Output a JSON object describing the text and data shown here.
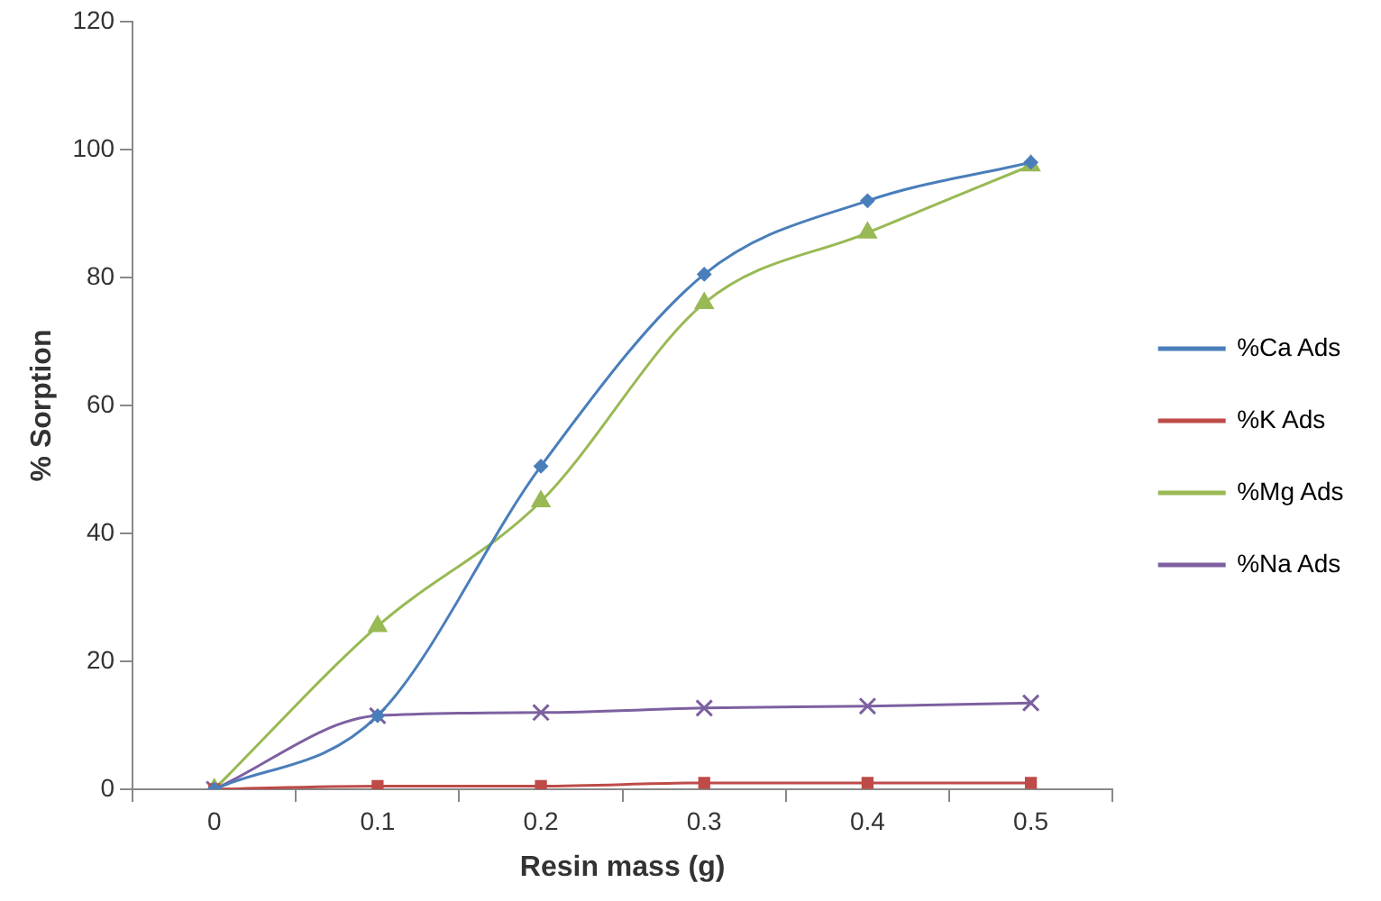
{
  "chart_data": {
    "type": "line",
    "xlabel": "Resin mass (g)",
    "ylabel": "% Sorption",
    "categories": [
      "0",
      "0.1",
      "0.2",
      "0.3",
      "0.4",
      "0.5"
    ],
    "ylim": [
      0,
      120
    ],
    "yticks": [
      0,
      20,
      40,
      60,
      80,
      100,
      120
    ],
    "grid": false,
    "legend": "right",
    "series": [
      {
        "name": "%Ca Ads",
        "color": "#4a7ebb",
        "marker": "diamond",
        "values": [
          0,
          11.5,
          50.5,
          80.5,
          92,
          98
        ]
      },
      {
        "name": "%K Ads",
        "color": "#be4b48",
        "marker": "square",
        "values": [
          0,
          0.5,
          0.5,
          1,
          1,
          1
        ]
      },
      {
        "name": "%Mg Ads",
        "color": "#98b954",
        "marker": "triangle",
        "values": [
          0,
          25.5,
          45,
          76,
          87,
          97.5
        ]
      },
      {
        "name": "%Na Ads",
        "color": "#7d60a0",
        "marker": "cross",
        "values": [
          0,
          11.5,
          12,
          12.7,
          13,
          13.5
        ]
      }
    ]
  }
}
